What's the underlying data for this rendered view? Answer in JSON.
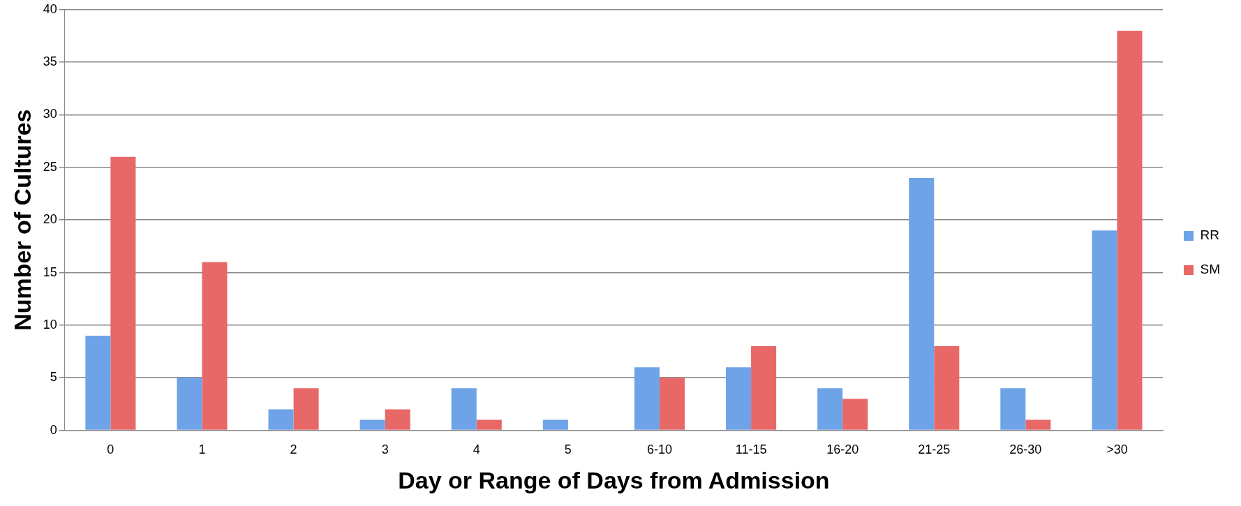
{
  "chart_data": {
    "type": "bar",
    "xlabel": "Day or Range of Days from Admission",
    "ylabel": "Number of Cultures",
    "categories": [
      "0",
      "1",
      "2",
      "3",
      "4",
      "5",
      "6-10",
      "11-15",
      "16-20",
      "21-25",
      "26-30",
      ">30"
    ],
    "series": [
      {
        "name": "RR",
        "color": "#6fa3e8",
        "values": [
          9,
          5,
          2,
          1,
          4,
          1,
          6,
          6,
          4,
          24,
          4,
          19
        ]
      },
      {
        "name": "SM",
        "color": "#e86868",
        "values": [
          26,
          16,
          4,
          2,
          1,
          0,
          5,
          8,
          3,
          8,
          1,
          38
        ]
      }
    ],
    "ylim": [
      0,
      40
    ],
    "yticks": [
      0,
      5,
      10,
      15,
      20,
      25,
      30,
      35,
      40
    ],
    "grid": "y",
    "legend": "right"
  }
}
